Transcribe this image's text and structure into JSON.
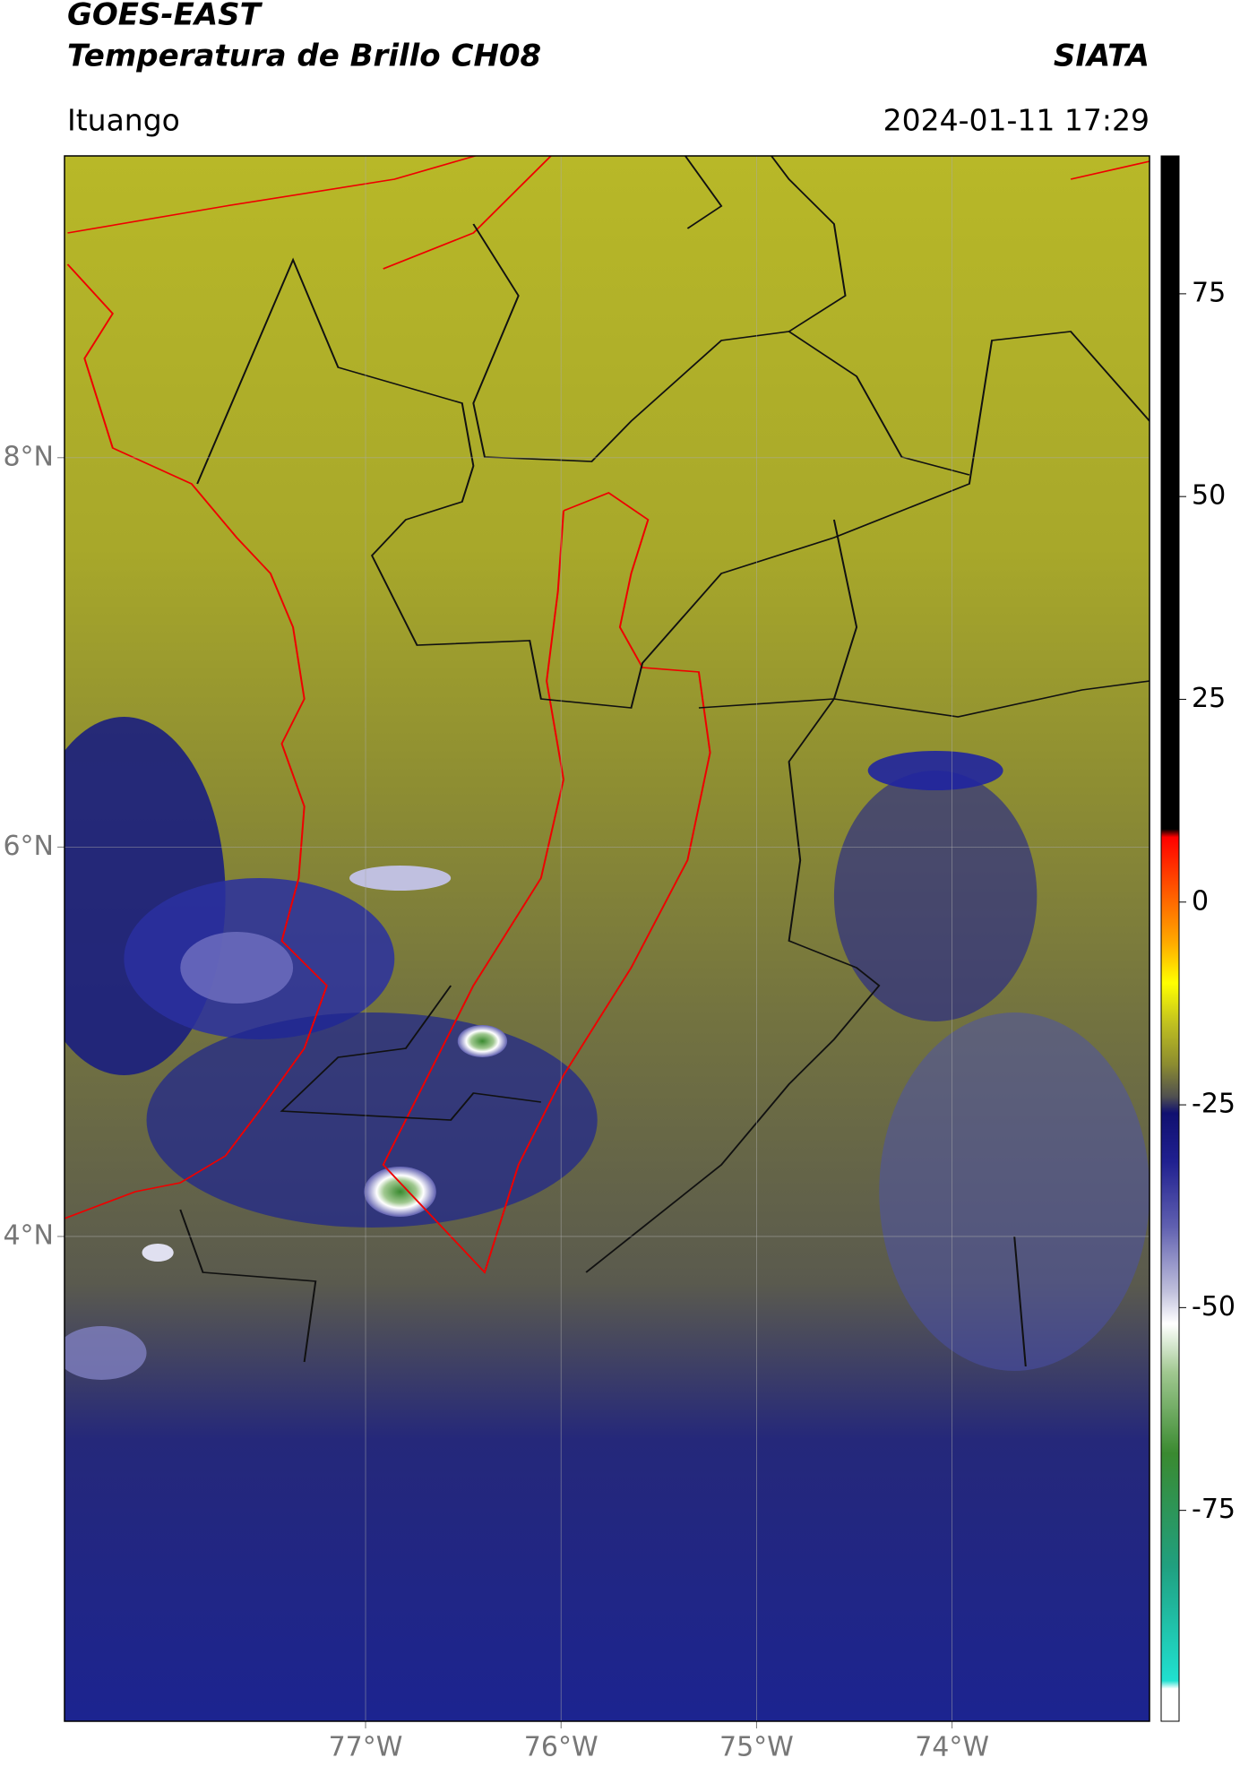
{
  "header": {
    "title": "GOES-EAST",
    "subtitle": "Temperatura de Brillo CH08",
    "location": "Ituango",
    "source": "SIATA",
    "timestamp": "2024-01-11 17:29"
  },
  "map": {
    "xlim": [
      -78.54,
      -72.99
    ],
    "ylim": [
      1.51,
      9.55
    ],
    "xticks": [
      {
        "value": -77,
        "label": "77°W"
      },
      {
        "value": -76,
        "label": "76°W"
      },
      {
        "value": -75,
        "label": "75°W"
      },
      {
        "value": -74,
        "label": "74°W"
      }
    ],
    "yticks": [
      {
        "value": 8,
        "label": "8°N"
      },
      {
        "value": 6,
        "label": "6°N"
      },
      {
        "value": 4,
        "label": "4°N"
      }
    ],
    "colorbar": {
      "lim": [
        -101,
        92
      ],
      "ticks": [
        75,
        50,
        25,
        0,
        -25,
        -50,
        -75
      ],
      "stops": [
        {
          "value": 92,
          "color": "#000000"
        },
        {
          "value": 9,
          "color": "#000000"
        },
        {
          "value": 8,
          "color": "#ff0000"
        },
        {
          "value": 0,
          "color": "#ff6a00"
        },
        {
          "value": -5,
          "color": "#ffaa00"
        },
        {
          "value": -10,
          "color": "#ffff00"
        },
        {
          "value": -15,
          "color": "#c0c020"
        },
        {
          "value": -20,
          "color": "#8c8c30"
        },
        {
          "value": -24,
          "color": "#505050"
        },
        {
          "value": -26,
          "color": "#101070"
        },
        {
          "value": -32,
          "color": "#202090"
        },
        {
          "value": -40,
          "color": "#6060b0"
        },
        {
          "value": -48,
          "color": "#c0c0dc"
        },
        {
          "value": -52,
          "color": "#ffffff"
        },
        {
          "value": -58,
          "color": "#a0c890"
        },
        {
          "value": -68,
          "color": "#3a8a30"
        },
        {
          "value": -82,
          "color": "#20a080"
        },
        {
          "value": -96,
          "color": "#20e0d0"
        },
        {
          "value": -97,
          "color": "#ffffff"
        },
        {
          "value": -101,
          "color": "#ffffff"
        }
      ]
    }
  }
}
